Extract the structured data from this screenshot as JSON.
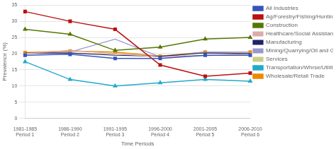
{
  "chart_data": {
    "type": "line",
    "categories": [
      "1981-1985\nPeriod 1",
      "1986-1990\nPeriod 2",
      "1991-1995\nPeriod 3",
      "1996-2000\nPeriod 4",
      "2001-2005\nPeriod 5",
      "2006-2010\nPeriod 6"
    ],
    "series": [
      {
        "name": "All Industries",
        "values": [
          19.5,
          19.8,
          18.5,
          18.5,
          19.5,
          19.5
        ],
        "color": "#3555BB",
        "marker": "square"
      },
      {
        "name": "Ag/Forestry/Fishing/Hunting",
        "values": [
          33.0,
          30.0,
          27.5,
          16.5,
          13.0,
          14.0
        ],
        "color": "#BB1111",
        "marker": "square"
      },
      {
        "name": "Construction",
        "values": [
          27.5,
          26.0,
          21.0,
          22.0,
          24.5,
          25.0
        ],
        "color": "#557700",
        "marker": "triangle"
      },
      {
        "name": "Healthcare/Social Assistance",
        "values": [
          20.0,
          21.0,
          20.0,
          19.0,
          19.5,
          19.5
        ],
        "color": "#DDAAAA",
        "marker": "none"
      },
      {
        "name": "Manufacturing",
        "values": [
          20.2,
          20.2,
          19.5,
          19.2,
          20.2,
          20.0
        ],
        "color": "#222266",
        "marker": "none"
      },
      {
        "name": "Mining/Quarrying/Oil and Gas",
        "values": [
          20.0,
          20.5,
          24.5,
          19.0,
          20.5,
          20.5
        ],
        "color": "#9999CC",
        "marker": "none"
      },
      {
        "name": "Services",
        "values": [
          20.1,
          20.2,
          19.8,
          19.3,
          19.3,
          20.1
        ],
        "color": "#CCCC88",
        "marker": "none"
      },
      {
        "name": "Transportation/Whrse/Utilities",
        "values": [
          17.5,
          12.0,
          10.0,
          11.0,
          12.0,
          11.5
        ],
        "color": "#22AACC",
        "marker": "triangle"
      },
      {
        "name": "Wholesale/Retail Trade",
        "values": [
          20.3,
          20.8,
          20.5,
          19.2,
          20.5,
          20.5
        ],
        "color": "#EE8800",
        "marker": "square"
      }
    ],
    "xlabel": "Time Periods",
    "ylabel": "Prevalence (%)",
    "ylim": [
      0,
      35
    ],
    "yticks": [
      0,
      5,
      10,
      15,
      20,
      25,
      30,
      35
    ],
    "grid": "y",
    "legend": "right"
  }
}
